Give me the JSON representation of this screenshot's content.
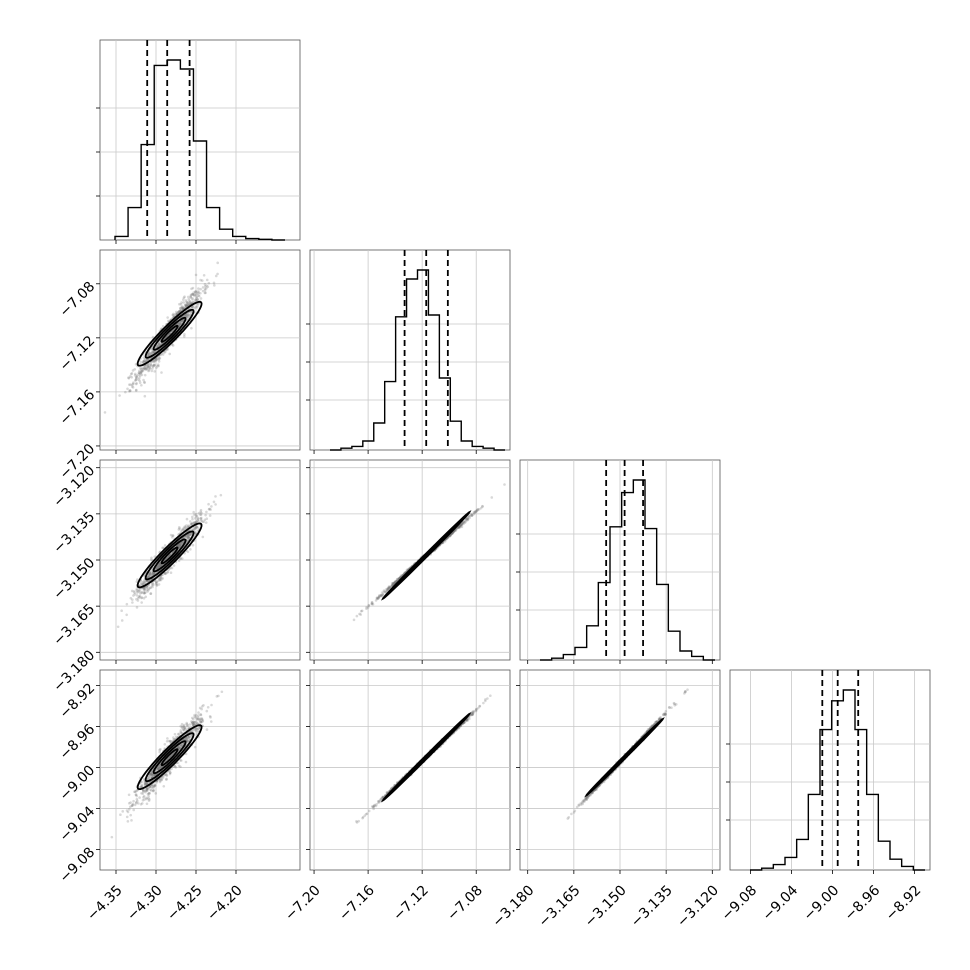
{
  "chart_data": {
    "type": "scatter",
    "subtype": "corner-plot",
    "title": "",
    "n_params": 4,
    "params": [
      {
        "index": 0,
        "center": -4.283,
        "sigma": 0.02,
        "quantiles": [
          -4.311,
          -4.286,
          -4.258
        ],
        "range": [
          -4.37,
          -4.12
        ],
        "ticks": [
          -4.35,
          -4.3,
          -4.25,
          -4.2
        ],
        "tick_labels": [
          "−4.35",
          "−4.30",
          "−4.25",
          "−4.20"
        ],
        "hist": [
          0.02,
          0.18,
          0.53,
          0.97,
          1.0,
          0.95,
          0.55,
          0.18,
          0.06,
          0.02,
          0.008,
          0.004,
          0.0
        ]
      },
      {
        "index": 1,
        "center": -7.117,
        "sigma": 0.016,
        "quantiles": [
          -7.133,
          -7.117,
          -7.101
        ],
        "range": [
          -7.203,
          -7.055
        ],
        "ticks": [
          -7.2,
          -7.16,
          -7.12,
          -7.08
        ],
        "tick_labels": [
          "−7.20",
          "−7.16",
          "−7.12",
          "−7.08"
        ],
        "hist": [
          0.0,
          0.01,
          0.02,
          0.05,
          0.15,
          0.38,
          0.74,
          0.95,
          1.0,
          0.75,
          0.4,
          0.16,
          0.05,
          0.02,
          0.01,
          0.0
        ]
      },
      {
        "index": 2,
        "center": -3.1485,
        "sigma": 0.0062,
        "quantiles": [
          -3.1545,
          -3.1485,
          -3.1425
        ],
        "range": [
          -3.1825,
          -3.1175
        ],
        "ticks": [
          -3.18,
          -3.165,
          -3.15,
          -3.135,
          -3.12
        ],
        "tick_labels": [
          "−3.180",
          "−3.165",
          "−3.150",
          "−3.135",
          "−3.120"
        ],
        "hist": [
          0.0,
          0.01,
          0.03,
          0.07,
          0.19,
          0.43,
          0.74,
          0.93,
          1.0,
          0.73,
          0.42,
          0.16,
          0.05,
          0.02,
          0.0
        ]
      },
      {
        "index": 3,
        "center": -8.99,
        "sigma": 0.02,
        "quantiles": [
          -9.01,
          -8.995,
          -8.975
        ],
        "range": [
          -9.1,
          -8.905
        ],
        "ticks": [
          -9.08,
          -9.04,
          -9.0,
          -8.96,
          -8.92
        ],
        "tick_labels": [
          "−9.08",
          "−9.04",
          "−9.00",
          "−8.96",
          "−8.92"
        ],
        "hist": [
          0.0,
          0.01,
          0.03,
          0.07,
          0.17,
          0.42,
          0.78,
          0.94,
          1.0,
          0.78,
          0.42,
          0.16,
          0.06,
          0.02,
          0.0
        ]
      }
    ],
    "correlations": [
      {
        "x": 0,
        "y": 1,
        "rho": 0.94
      },
      {
        "x": 0,
        "y": 2,
        "rho": 0.94
      },
      {
        "x": 0,
        "y": 3,
        "rho": 0.94
      },
      {
        "x": 1,
        "y": 2,
        "rho": 0.999
      },
      {
        "x": 1,
        "y": 3,
        "rho": 0.999
      },
      {
        "x": 2,
        "y": 3,
        "rho": 0.999
      }
    ],
    "grid": true,
    "quantile_lines": "dashed",
    "contour_levels": [
      0.5,
      1.0,
      1.5,
      2.0
    ],
    "colors": {
      "points": "#777777",
      "lines": "#000000",
      "grid": "#c8c8c8"
    }
  }
}
